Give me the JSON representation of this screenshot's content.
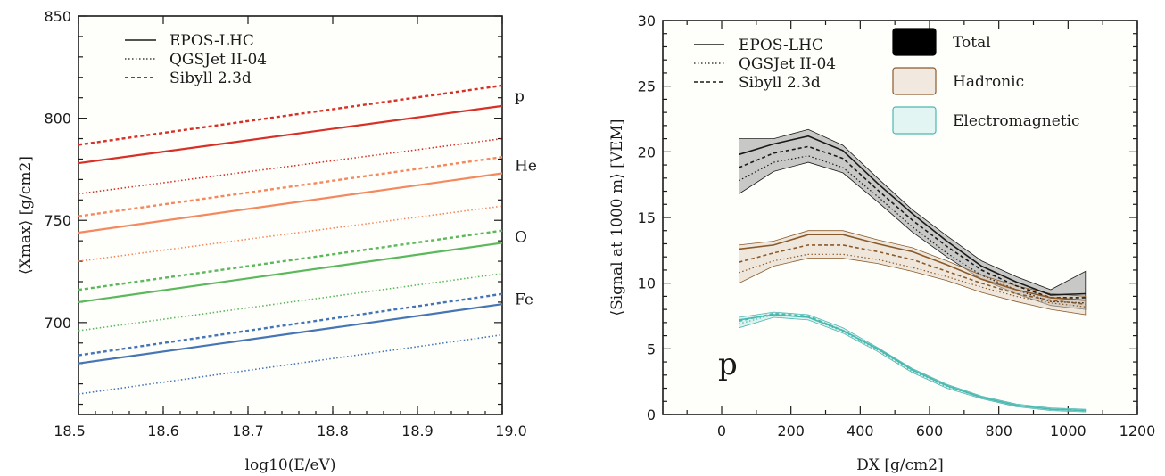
{
  "chart_data": [
    {
      "type": "line",
      "xlabel": "log10(E/eV)",
      "ylabel": "⟨Xmax⟩ [g/cm2]",
      "xlim": [
        18.5,
        19.0
      ],
      "ylim": [
        655,
        850
      ],
      "xticks": [
        "18.5",
        "18.6",
        "18.7",
        "18.8",
        "18.9",
        "19.0"
      ],
      "yticks": [
        "700",
        "750",
        "800",
        "850"
      ],
      "legend": {
        "position": "top-left",
        "entries": [
          {
            "label": "EPOS-LHC",
            "style": "solid"
          },
          {
            "label": "QGSJet II-04",
            "style": "dotted"
          },
          {
            "label": "Sibyll 2.3d",
            "style": "dashed"
          }
        ]
      },
      "series": [
        {
          "name": "p",
          "color": "#d73027",
          "model": "EPOS-LHC",
          "x": [
            18.5,
            19.0
          ],
          "y": [
            778,
            806
          ]
        },
        {
          "name": "p",
          "color": "#d73027",
          "model": "QGSJet II-04",
          "x": [
            18.5,
            19.0
          ],
          "y": [
            763,
            790
          ]
        },
        {
          "name": "p",
          "color": "#d73027",
          "model": "Sibyll 2.3d",
          "x": [
            18.5,
            19.0
          ],
          "y": [
            787,
            816
          ]
        },
        {
          "name": "He",
          "color": "#f4895f",
          "model": "EPOS-LHC",
          "x": [
            18.5,
            19.0
          ],
          "y": [
            744,
            773
          ]
        },
        {
          "name": "He",
          "color": "#f4895f",
          "model": "QGSJet II-04",
          "x": [
            18.5,
            19.0
          ],
          "y": [
            730,
            757
          ]
        },
        {
          "name": "He",
          "color": "#f4895f",
          "model": "Sibyll 2.3d",
          "x": [
            18.5,
            19.0
          ],
          "y": [
            752,
            781
          ]
        },
        {
          "name": "O",
          "color": "#5cb85c",
          "model": "EPOS-LHC",
          "x": [
            18.5,
            19.0
          ],
          "y": [
            710,
            739
          ]
        },
        {
          "name": "O",
          "color": "#5cb85c",
          "model": "QGSJet II-04",
          "x": [
            18.5,
            19.0
          ],
          "y": [
            696,
            724
          ]
        },
        {
          "name": "O",
          "color": "#5cb85c",
          "model": "Sibyll 2.3d",
          "x": [
            18.5,
            19.0
          ],
          "y": [
            716,
            745
          ]
        },
        {
          "name": "Fe",
          "color": "#4575b4",
          "model": "EPOS-LHC",
          "x": [
            18.5,
            19.0
          ],
          "y": [
            680,
            709
          ]
        },
        {
          "name": "Fe",
          "color": "#4575b4",
          "model": "QGSJet II-04",
          "x": [
            18.5,
            19.0
          ],
          "y": [
            665,
            694
          ]
        },
        {
          "name": "Fe",
          "color": "#4575b4",
          "model": "Sibyll 2.3d",
          "x": [
            18.5,
            19.0
          ],
          "y": [
            684,
            714
          ]
        }
      ]
    },
    {
      "type": "line",
      "xlabel": "DX [g/cm2]",
      "ylabel": "⟨Signal at 1000 m⟩ [VEM]",
      "xlim": [
        -170,
        1200
      ],
      "ylim": [
        0,
        30
      ],
      "xticks": [
        "0",
        "200",
        "400",
        "600",
        "800",
        "1000",
        "1200"
      ],
      "yticks": [
        "0",
        "5",
        "10",
        "15",
        "20",
        "25",
        "30"
      ],
      "annotation": "p",
      "legend": {
        "position": "top",
        "entries": [
          {
            "label": "EPOS-LHC",
            "style": "solid"
          },
          {
            "label": "QGSJet II-04",
            "style": "dotted"
          },
          {
            "label": "Sibyll 2.3d",
            "style": "dashed"
          },
          {
            "label": "Total",
            "color": "#000000"
          },
          {
            "label": "Hadronic",
            "color": "#8b5a2b"
          },
          {
            "label": "Electromagnetic",
            "color": "#4bb8b0"
          }
        ]
      },
      "x": [
        50,
        150,
        250,
        350,
        450,
        550,
        650,
        750,
        850,
        950,
        1050
      ],
      "series": [
        {
          "name": "Total",
          "color": "#1a1a1a",
          "model": "EPOS-LHC",
          "y": [
            19.8,
            20.6,
            21.2,
            20.1,
            17.6,
            15.3,
            13.2,
            11.3,
            10.1,
            9.1,
            9.2
          ]
        },
        {
          "name": "Total",
          "color": "#1a1a1a",
          "model": "QGSJet II-04",
          "y": [
            17.8,
            19.2,
            19.7,
            18.8,
            16.6,
            14.3,
            12.3,
            10.6,
            9.5,
            8.6,
            8.5
          ]
        },
        {
          "name": "Total",
          "color": "#1a1a1a",
          "model": "Sibyll 2.3d",
          "y": [
            18.8,
            19.9,
            20.4,
            19.5,
            17.1,
            14.8,
            12.8,
            11.0,
            9.8,
            8.9,
            8.9
          ]
        },
        {
          "name": "Hadronic",
          "color": "#8b5a2b",
          "model": "EPOS-LHC",
          "y": [
            12.6,
            12.9,
            13.7,
            13.7,
            13.0,
            12.4,
            11.4,
            10.3,
            9.5,
            8.9,
            8.7
          ]
        },
        {
          "name": "Hadronic",
          "color": "#8b5a2b",
          "model": "QGSJet II-04",
          "y": [
            10.8,
            11.7,
            12.2,
            12.2,
            11.8,
            11.2,
            10.5,
            9.7,
            9.0,
            8.5,
            8.2
          ]
        },
        {
          "name": "Hadronic",
          "color": "#8b5a2b",
          "model": "Sibyll 2.3d",
          "y": [
            11.6,
            12.3,
            12.9,
            12.9,
            12.4,
            11.8,
            10.9,
            10.0,
            9.2,
            8.7,
            8.4
          ]
        },
        {
          "name": "Electromagnetic",
          "color": "#4bb8b0",
          "model": "EPOS-LHC",
          "y": [
            7.2,
            7.6,
            7.4,
            6.4,
            5.0,
            3.4,
            2.2,
            1.3,
            0.7,
            0.4,
            0.3
          ]
        },
        {
          "name": "Electromagnetic",
          "color": "#4bb8b0",
          "model": "QGSJet II-04",
          "y": [
            6.9,
            7.6,
            7.4,
            6.3,
            4.9,
            3.3,
            2.1,
            1.3,
            0.7,
            0.4,
            0.3
          ]
        },
        {
          "name": "Electromagnetic",
          "color": "#4bb8b0",
          "model": "Sibyll 2.3d",
          "y": [
            7.1,
            7.7,
            7.5,
            6.4,
            5.0,
            3.4,
            2.2,
            1.3,
            0.7,
            0.4,
            0.3
          ]
        }
      ],
      "bands": [
        {
          "name": "Total",
          "color": "#1a1a1a",
          "fill": "#9a9a9a",
          "lower": [
            16.8,
            18.5,
            19.2,
            18.4,
            16.2,
            13.9,
            12.0,
            10.3,
            9.2,
            8.3,
            8.0
          ],
          "upper": [
            21.0,
            21.0,
            21.7,
            20.5,
            18.0,
            15.6,
            13.6,
            11.7,
            10.5,
            9.5,
            10.9
          ]
        },
        {
          "name": "Hadronic",
          "color": "#8b5a2b",
          "fill": "#e3d3c3",
          "lower": [
            10.0,
            11.3,
            11.9,
            11.9,
            11.5,
            10.9,
            10.2,
            9.3,
            8.6,
            8.0,
            7.6
          ]
        },
        {
          "name": "Electromagnetic",
          "color": "#4bb8b0",
          "fill": "#bfe8e4",
          "lower": [
            6.6,
            7.4,
            7.2,
            6.2,
            4.8,
            3.2,
            2.0,
            1.2,
            0.6,
            0.3,
            0.2
          ],
          "upper": [
            7.4,
            7.8,
            7.6,
            6.6,
            5.1,
            3.5,
            2.3,
            1.4,
            0.8,
            0.5,
            0.4
          ]
        }
      ]
    }
  ]
}
